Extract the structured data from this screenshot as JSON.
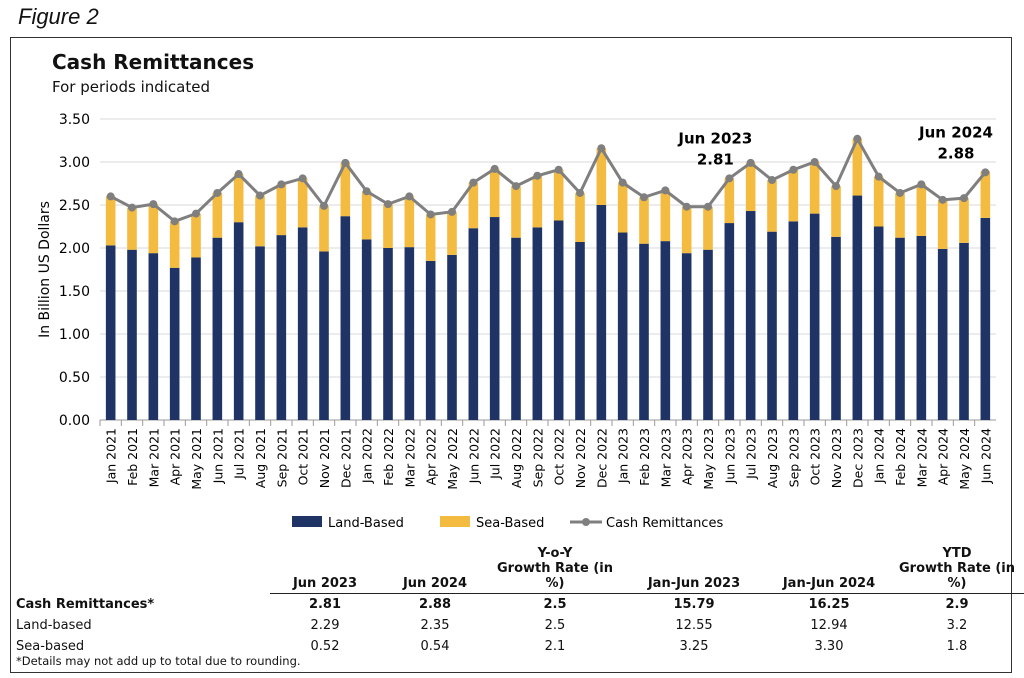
{
  "figure_label": "Figure 2",
  "chart_data": {
    "type": "bar",
    "stacked": true,
    "title": "Cash Remittances",
    "subtitle": "For periods indicated",
    "ylabel": "In Billion US Dollars",
    "xlabel": "",
    "ylim": [
      0,
      3.5
    ],
    "yticks": [
      "0.00",
      "0.50",
      "1.00",
      "1.50",
      "2.00",
      "2.50",
      "3.00",
      "3.50"
    ],
    "grid": true,
    "legend_position": "bottom",
    "categories": [
      "Jan 2021",
      "Feb 2021",
      "Mar 2021",
      "Apr 2021",
      "May 2021",
      "Jun 2021",
      "Jul 2021",
      "Aug 2021",
      "Sep 2021",
      "Oct 2021",
      "Nov 2021",
      "Dec 2021",
      "Jan 2022",
      "Feb 2022",
      "Mar 2022",
      "Apr 2022",
      "May 2022",
      "Jun 2022",
      "Jul 2022",
      "Aug 2022",
      "Sep 2022",
      "Oct 2022",
      "Nov 2022",
      "Dec 2022",
      "Jan 2023",
      "Feb 2023",
      "Mar 2023",
      "Apr 2023",
      "May 2023",
      "Jun 2023",
      "Jul 2023",
      "Aug 2023",
      "Sep 2023",
      "Oct 2023",
      "Nov 2023",
      "Dec 2023",
      "Jan 2024",
      "Feb 2024",
      "Mar 2024",
      "Apr 2024",
      "May 2024",
      "Jun 2024"
    ],
    "series": [
      {
        "name": "Land-Based",
        "type": "bar",
        "color": "#1f3464",
        "values": [
          2.03,
          1.98,
          1.94,
          1.77,
          1.89,
          2.12,
          2.3,
          2.02,
          2.15,
          2.24,
          1.96,
          2.37,
          2.1,
          2.0,
          2.01,
          1.85,
          1.92,
          2.23,
          2.36,
          2.12,
          2.24,
          2.32,
          2.07,
          2.5,
          2.18,
          2.05,
          2.08,
          1.94,
          1.98,
          2.29,
          2.43,
          2.19,
          2.31,
          2.4,
          2.13,
          2.61,
          2.25,
          2.12,
          2.14,
          1.99,
          2.06,
          2.35
        ]
      },
      {
        "name": "Sea-Based",
        "type": "bar",
        "color": "#f3bb3f",
        "values": [
          0.57,
          0.49,
          0.57,
          0.54,
          0.51,
          0.52,
          0.56,
          0.59,
          0.59,
          0.57,
          0.53,
          0.62,
          0.56,
          0.51,
          0.59,
          0.54,
          0.5,
          0.53,
          0.56,
          0.6,
          0.6,
          0.59,
          0.57,
          0.66,
          0.58,
          0.54,
          0.59,
          0.54,
          0.5,
          0.52,
          0.56,
          0.6,
          0.6,
          0.6,
          0.59,
          0.66,
          0.58,
          0.52,
          0.6,
          0.57,
          0.52,
          0.54
        ]
      },
      {
        "name": "Cash Remittances",
        "type": "line",
        "color": "#7f7f7f",
        "values": [
          2.6,
          2.47,
          2.51,
          2.31,
          2.4,
          2.64,
          2.86,
          2.61,
          2.74,
          2.81,
          2.49,
          2.99,
          2.66,
          2.51,
          2.6,
          2.39,
          2.42,
          2.76,
          2.92,
          2.72,
          2.84,
          2.91,
          2.64,
          3.16,
          2.76,
          2.59,
          2.67,
          2.48,
          2.48,
          2.81,
          2.99,
          2.79,
          2.91,
          3.0,
          2.72,
          3.27,
          2.83,
          2.64,
          2.74,
          2.56,
          2.58,
          2.88
        ]
      }
    ],
    "annotations": [
      {
        "category": "Jun 2023",
        "label": "Jun 2023",
        "value": "2.81"
      },
      {
        "category": "Jun 2024",
        "label": "Jun 2024",
        "value": "2.88"
      }
    ]
  },
  "table": {
    "headers": [
      "",
      "Jun 2023",
      "Jun 2024",
      "Y-o-Y\nGrowth Rate (in %)",
      "Jan-Jun 2023",
      "Jan-Jun 2024",
      "YTD\nGrowth Rate (in %)"
    ],
    "rows": [
      [
        "Cash Remittances*",
        "2.81",
        "2.88",
        "2.5",
        "15.79",
        "16.25",
        "2.9"
      ],
      [
        "Land-based",
        "2.29",
        "2.35",
        "2.5",
        "12.55",
        "12.94",
        "3.2"
      ],
      [
        "Sea-based",
        "0.52",
        "0.54",
        "2.1",
        "3.25",
        "3.30",
        "1.8"
      ]
    ]
  },
  "footnote": "*Details may not add up to total due to rounding."
}
